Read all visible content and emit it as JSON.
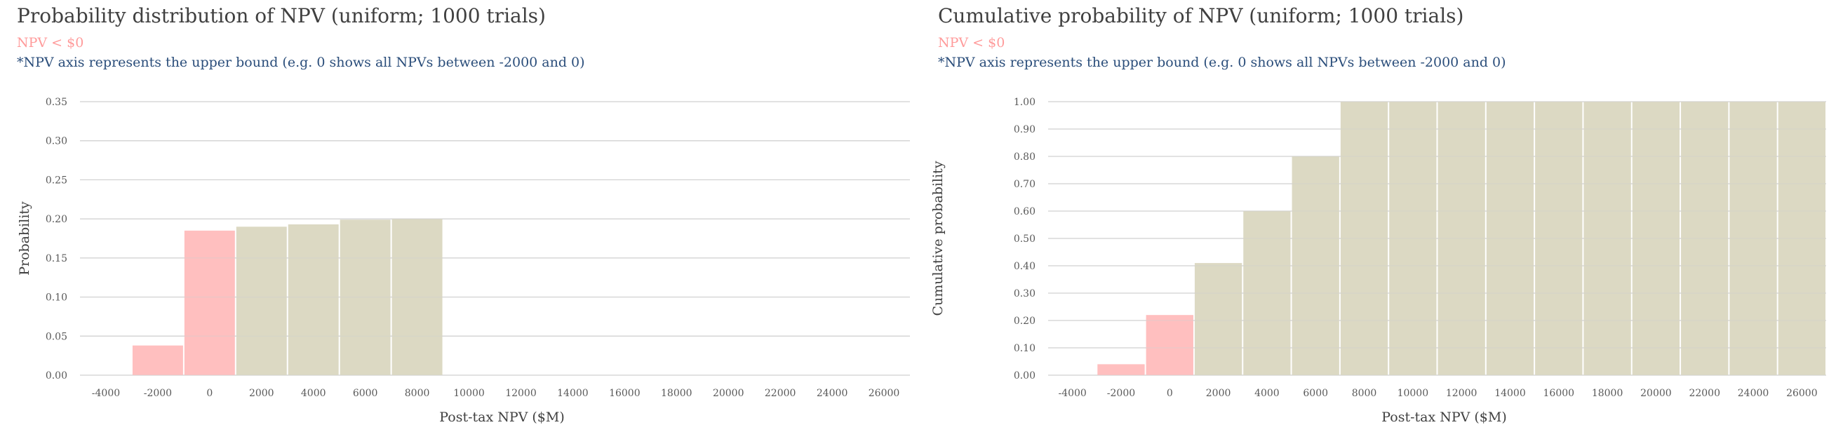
{
  "legend_colors": {
    "negative": "#ffbfbf",
    "positive": "#dcd9c3",
    "grid": "#d0d0d0"
  },
  "chart_data": [
    {
      "type": "bar",
      "title": "Probability distribution of NPV (uniform; 1000 trials)",
      "subtitle": "NPV < $0",
      "note": "*NPV axis represents the upper bound (e.g. 0 shows all NPVs between -2000 and 0)",
      "xlabel": "Post-tax NPV ($M)",
      "ylabel": "Probability",
      "categories": [
        "-4000",
        "-2000",
        "0",
        "2000",
        "4000",
        "6000",
        "8000",
        "10000",
        "12000",
        "14000",
        "16000",
        "18000",
        "20000",
        "22000",
        "24000",
        "26000"
      ],
      "values": [
        0,
        0.038,
        0.185,
        0.19,
        0.193,
        0.199,
        0.2,
        0,
        0,
        0,
        0,
        0,
        0,
        0,
        0,
        0
      ],
      "negative_through": "0",
      "ylim": [
        0,
        0.35
      ],
      "yticks": [
        "0.00",
        "0.05",
        "0.10",
        "0.15",
        "0.20",
        "0.25",
        "0.30",
        "0.35"
      ],
      "grid": true
    },
    {
      "type": "bar",
      "title": "Cumulative probability of NPV (uniform; 1000 trials)",
      "subtitle": "NPV < $0",
      "note": "*NPV axis represents the upper bound (e.g. 0 shows all NPVs between -2000 and 0)",
      "xlabel": "Post-tax NPV ($M)",
      "ylabel": "Cumulative probability",
      "categories": [
        "-4000",
        "-2000",
        "0",
        "2000",
        "4000",
        "6000",
        "8000",
        "10000",
        "12000",
        "14000",
        "16000",
        "18000",
        "20000",
        "22000",
        "24000",
        "26000"
      ],
      "values": [
        0,
        0.04,
        0.22,
        0.41,
        0.6,
        0.8,
        1.0,
        1.0,
        1.0,
        1.0,
        1.0,
        1.0,
        1.0,
        1.0,
        1.0,
        1.0
      ],
      "negative_through": "0",
      "ylim": [
        0,
        1.0
      ],
      "yticks": [
        "0.00",
        "0.10",
        "0.20",
        "0.30",
        "0.40",
        "0.50",
        "0.60",
        "0.70",
        "0.80",
        "0.90",
        "1.00"
      ],
      "grid": true
    }
  ]
}
